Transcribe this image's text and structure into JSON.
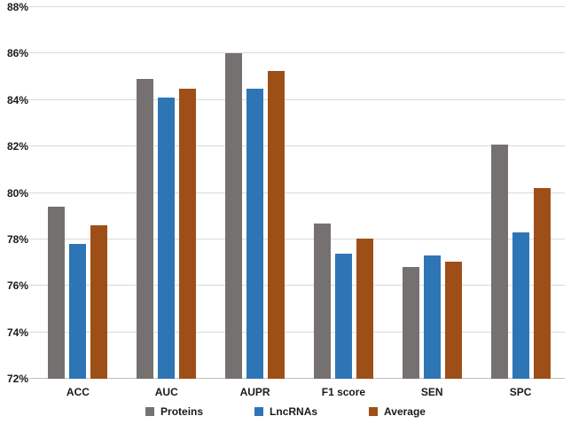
{
  "chart_data": {
    "type": "bar",
    "title": "",
    "xlabel": "",
    "ylabel": "",
    "categories": [
      "ACC",
      "AUC",
      "AUPR",
      "F1 score",
      "SEN",
      "SPC"
    ],
    "series": [
      {
        "name": "Proteins",
        "color": "#767171",
        "values": [
          79.4,
          84.9,
          86.0,
          78.7,
          76.8,
          82.1
        ]
      },
      {
        "name": "LncRNAs",
        "color": "#2e75b6",
        "values": [
          77.8,
          84.1,
          84.5,
          77.4,
          77.3,
          78.3
        ]
      },
      {
        "name": "Average",
        "color": "#9e4f17",
        "values": [
          78.6,
          84.5,
          85.25,
          78.05,
          77.05,
          80.2
        ]
      }
    ],
    "ylim": [
      72,
      88
    ],
    "ytick_step": 2,
    "ytick_labels": [
      "72%",
      "74%",
      "76%",
      "78%",
      "80%",
      "82%",
      "84%",
      "86%",
      "88%"
    ],
    "grid": true,
    "gridline_color": "#d9d9d9",
    "background_color": "#ffffff",
    "legend_position": "bottom"
  }
}
